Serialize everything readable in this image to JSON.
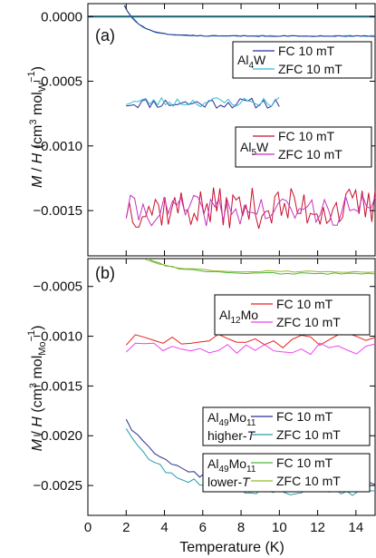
{
  "chart_data": [
    {
      "type": "line",
      "panel_label": "(a)",
      "xlabel": "",
      "ylabel": "M / H (cm³ mol_W⁻¹)",
      "ylabel_parts": {
        "pre": "M / H (cm",
        "sup1": "3",
        "mid": " mol",
        "sub": "W",
        "sup2": "−1",
        "post": ")"
      },
      "xlim": [
        0,
        15
      ],
      "ylim": [
        -0.00185,
        0.0001
      ],
      "yticks": [
        0.0,
        -0.0005,
        -0.001,
        -0.0015
      ],
      "ytick_labels": [
        "0.0000",
        "−0.0005",
        "−0.0010",
        "−0.0015"
      ],
      "zero_line": true,
      "legends": [
        {
          "sample": {
            "base": "Al",
            "sub": "4",
            "rest": "W"
          },
          "entries": [
            {
              "label": "FC 10 mT",
              "color": "#2b2f8f"
            },
            {
              "label": "ZFC 10 mT",
              "color": "#35b9d6"
            }
          ]
        },
        {
          "sample": {
            "base": "Al",
            "sub": "5",
            "rest": "W"
          },
          "entries": [
            {
              "label": "FC 10 mT",
              "color": "#c8102e"
            },
            {
              "label": "ZFC 10 mT",
              "color": "#c832c0"
            }
          ]
        }
      ],
      "series": [
        {
          "sample": "Al4W",
          "mode": "FC",
          "color": "#2b2f8f",
          "x_range": [
            2,
            10
          ],
          "points": 40,
          "level": -0.00067,
          "noise": 4e-05,
          "seed": 11
        },
        {
          "sample": "Al4W",
          "mode": "ZFC",
          "color": "#35b9d6",
          "x_range": [
            2,
            10
          ],
          "points": 40,
          "level": -0.00066,
          "noise": 4e-05,
          "seed": 23
        },
        {
          "sample": "Al5W",
          "mode": "FC",
          "color": "#c8102e",
          "x_range": [
            2,
            15
          ],
          "points": 78,
          "level": -0.00148,
          "noise": 0.00016,
          "seed": 37
        },
        {
          "sample": "Al5W",
          "mode": "ZFC",
          "color": "#c832c0",
          "x_range": [
            2,
            15
          ],
          "points": 60,
          "level": -0.0015,
          "noise": 0.00012,
          "seed": 41
        },
        {
          "sample": "ref",
          "mode": "ZFC",
          "color": "#35b9d6",
          "x_range": [
            1.9,
            15
          ],
          "points": 70,
          "level": -0.00015,
          "noise": 5e-06,
          "seed": 5,
          "start": 8e-05,
          "decay": 0.8
        },
        {
          "sample": "ref",
          "mode": "FC",
          "color": "#2b2f8f",
          "x_range": [
            1.9,
            15
          ],
          "points": 70,
          "level": -0.00015,
          "noise": 4e-06,
          "seed": 9,
          "start": 9e-05,
          "decay": 0.8
        }
      ]
    },
    {
      "type": "line",
      "panel_label": "(b)",
      "xlabel": "Temperature (K)",
      "ylabel": "M / H (cm³ mol_Mo⁻¹)",
      "ylabel_parts": {
        "pre": "M / H (cm",
        "sup1": "3",
        "mid": " mol",
        "sub": "Mo",
        "sup2": "−1",
        "post": ")"
      },
      "xlim": [
        0,
        15
      ],
      "ylim": [
        -0.0028,
        -0.00022
      ],
      "xticks": [
        0,
        2,
        4,
        6,
        8,
        10,
        12,
        14
      ],
      "xtick_labels": [
        "0",
        "2",
        "4",
        "6",
        "8",
        "10",
        "12",
        "14"
      ],
      "yticks": [
        -0.0005,
        -0.001,
        -0.0015,
        -0.002,
        -0.0025
      ],
      "ytick_labels": [
        "−0.0005",
        "−0.0010",
        "−0.0015",
        "−0.0020",
        "−0.0025"
      ],
      "legends": [
        {
          "sample": {
            "base": "Al",
            "sub": "12",
            "rest": "Mo"
          },
          "entries": [
            {
              "label": "FC 10 mT",
              "color": "#e8201e"
            },
            {
              "label": "ZFC 10 mT",
              "color": "#ee44ee"
            }
          ]
        },
        {
          "sample": {
            "base": "Al",
            "sub": "49",
            "rest": "Mo",
            "sub2": "11"
          },
          "note": "higher-",
          "note_italic": "T",
          "entries": [
            {
              "label": "FC 10 mT",
              "color": "#2b2f8f"
            },
            {
              "label": "ZFC 10 mT",
              "color": "#2a9aa8"
            }
          ]
        },
        {
          "sample": {
            "base": "Al",
            "sub": "49",
            "rest": "Mo",
            "sub2": "11"
          },
          "note": "lower-",
          "note_italic": "T",
          "entries": [
            {
              "label": "FC 10 mT",
              "color": "#4cb83a"
            },
            {
              "label": "ZFC 10 mT",
              "color": "#9ab62a"
            }
          ]
        }
      ],
      "series": [
        {
          "sample": "Al12Mo",
          "mode": "FC",
          "color": "#e8201e",
          "x_range": [
            2,
            15
          ],
          "points": 28,
          "level": -0.00105,
          "noise": 8e-05,
          "seed": 51
        },
        {
          "sample": "Al12Mo",
          "mode": "ZFC",
          "color": "#ee44ee",
          "x_range": [
            2,
            15
          ],
          "points": 28,
          "level": -0.00113,
          "noise": 6e-05,
          "seed": 63
        },
        {
          "sample": "Al49Mo11 higher-T",
          "mode": "FC",
          "color": "#2b2f8f",
          "x_range": [
            2,
            15
          ],
          "points": 45,
          "level": -0.0025,
          "noise": 3.5e-05,
          "seed": 71,
          "start": -0.00185,
          "decay": 2.2
        },
        {
          "sample": "Al49Mo11 higher-T",
          "mode": "ZFC",
          "color": "#2a9aa8",
          "x_range": [
            2,
            15
          ],
          "points": 45,
          "level": -0.00257,
          "noise": 3.5e-05,
          "seed": 83,
          "start": -0.00195,
          "decay": 2.0
        },
        {
          "sample": "Al49Mo11 lower-T",
          "mode": "FC",
          "color": "#4cb83a",
          "x_range": [
            3,
            15
          ],
          "points": 35,
          "level": -0.00037,
          "noise": 8e-06,
          "seed": 91,
          "start": -0.0002,
          "decay": 1.5
        },
        {
          "sample": "Al49Mo11 lower-T",
          "mode": "ZFC",
          "color": "#9ab62a",
          "x_range": [
            3,
            15
          ],
          "points": 35,
          "level": -0.00035,
          "noise": 8e-06,
          "seed": 97,
          "start": -0.00022,
          "decay": 1.5
        }
      ]
    }
  ]
}
